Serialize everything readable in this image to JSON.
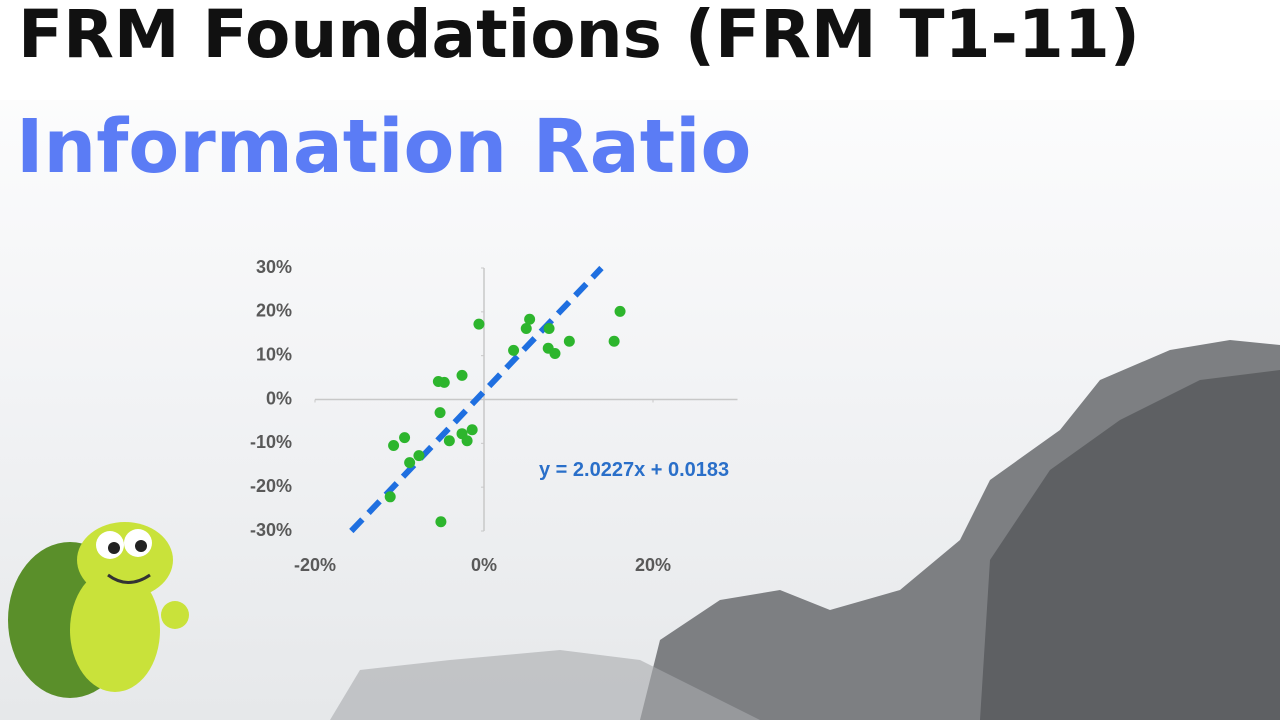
{
  "title": "FRM Foundations (FRM T1-11)",
  "subtitle": "Information Ratio",
  "chart_data": {
    "type": "scatter",
    "x": [
      -0.6,
      5.4,
      5.0,
      7.7,
      3.5,
      7.6,
      8.4,
      10.1,
      15.4,
      16.1,
      -2.6,
      -5.4,
      -4.7,
      -5.2,
      -4.1,
      -2.6,
      -2.0,
      -1.4,
      -10.7,
      -9.4,
      -8.8,
      -7.7,
      -11.1,
      -5.1
    ],
    "values": [
      17.2,
      18.3,
      16.2,
      16.2,
      11.2,
      11.7,
      10.5,
      13.3,
      13.3,
      20.1,
      5.5,
      4.1,
      3.9,
      -3.0,
      -9.4,
      -7.8,
      -9.4,
      -6.9,
      -10.5,
      -8.7,
      -14.4,
      -12.8,
      -22.2,
      -27.9
    ],
    "color": "#2db52d",
    "xlim": [
      -20,
      30
    ],
    "ylim": [
      -30,
      30
    ],
    "xticks": [
      {
        "value": -20,
        "label": "-20%"
      },
      {
        "value": 0,
        "label": "0%"
      },
      {
        "value": 20,
        "label": "20%"
      }
    ],
    "yticks": [
      {
        "value": 30,
        "label": "30%"
      },
      {
        "value": 20,
        "label": "20%"
      },
      {
        "value": 10,
        "label": "10%"
      },
      {
        "value": 0,
        "label": "0%"
      },
      {
        "value": -10,
        "label": "-10%"
      },
      {
        "value": -20,
        "label": "-20%"
      },
      {
        "value": -30,
        "label": "-30%"
      }
    ],
    "trendline": {
      "x": [
        -15.7,
        13.9
      ],
      "y": [
        -30,
        30
      ],
      "color": "#1f6fe0"
    },
    "annotation": "y = 2.0227x + 0.0183"
  }
}
